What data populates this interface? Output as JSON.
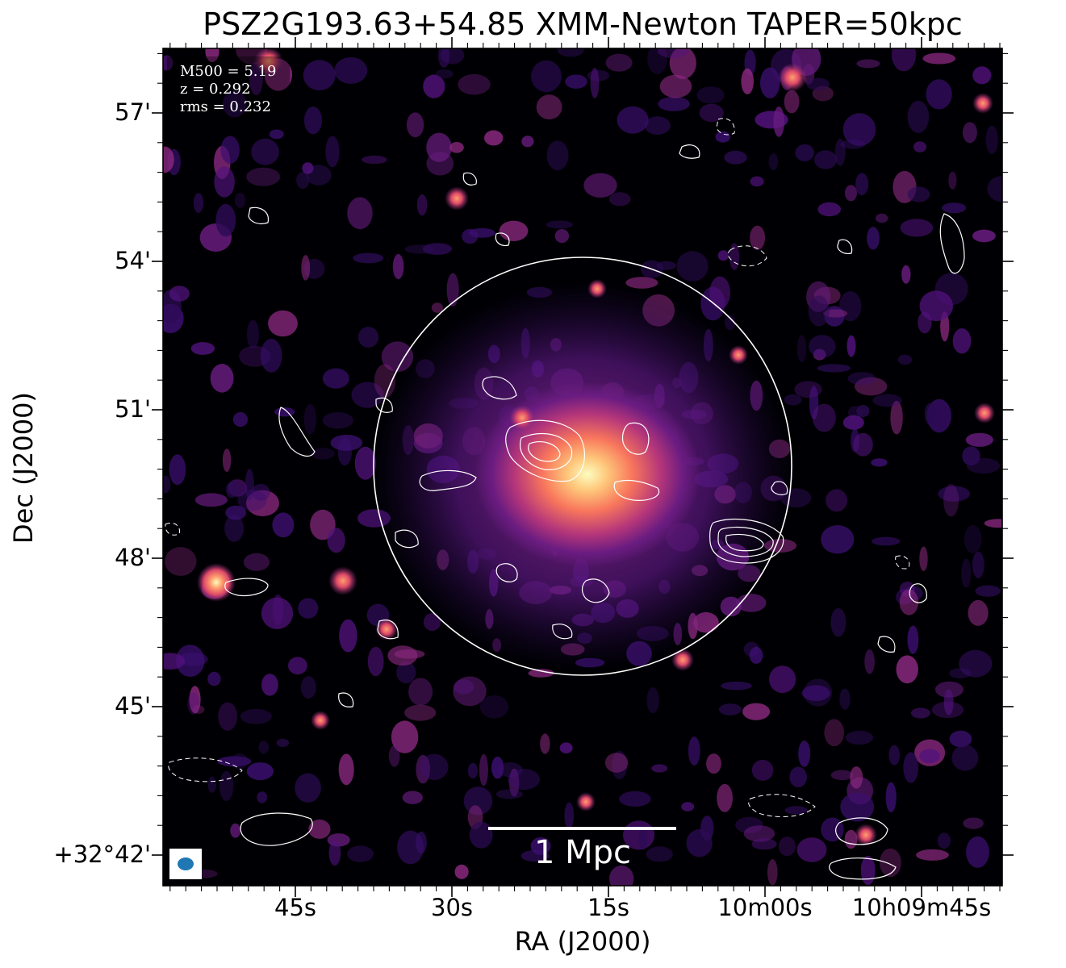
{
  "title": "PSZ2G193.63+54.85 XMM-Newton TAPER=50kpc",
  "axes": {
    "xlabel": "RA (J2000)",
    "ylabel": "Dec (J2000)",
    "xticks": [
      "45s",
      "30s",
      "15s",
      "10m00s",
      "10h09m45s"
    ],
    "yticks": [
      "57'",
      "54'",
      "51'",
      "48'",
      "45'",
      "+32°42'"
    ]
  },
  "info": {
    "line1": "M500 = 5.19",
    "line2": "z = 0.292",
    "line3": "rms = 0.232"
  },
  "scalebar": {
    "label": "1 Mpc"
  },
  "colors": {
    "background": "#000004",
    "colormap": [
      "#000004",
      "#3b0f70",
      "#8c2981",
      "#de4968",
      "#fe9f6d",
      "#fcfdbf"
    ],
    "contour": "#ffffff",
    "beam": "#1f77b4"
  }
}
